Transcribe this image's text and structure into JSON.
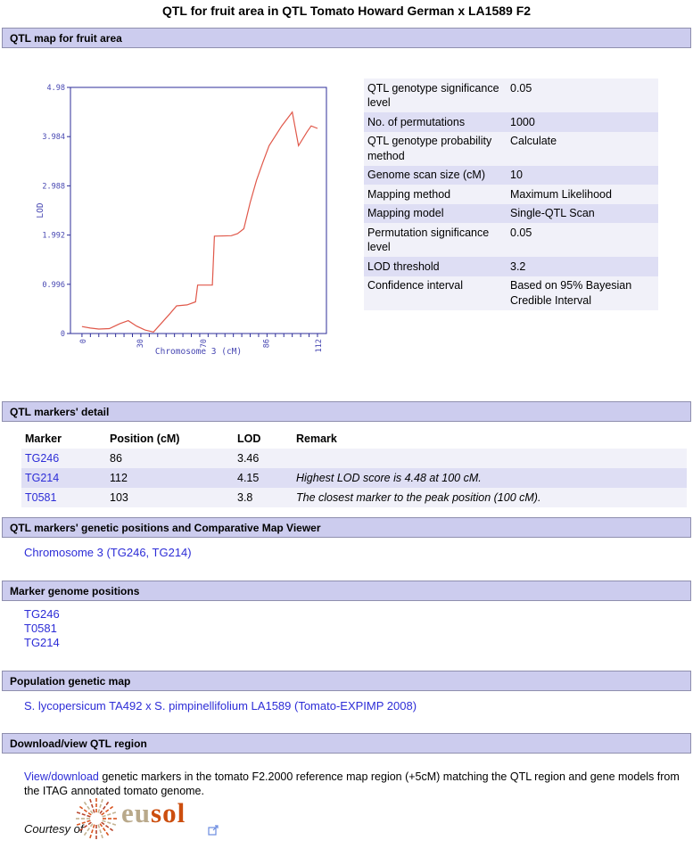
{
  "page": {
    "title": "QTL for fruit area in QTL Tomato Howard German x LA1589 F2"
  },
  "sections": {
    "map": {
      "title": "QTL map for fruit area"
    },
    "markers_detail": {
      "title": "QTL markers' detail"
    },
    "genetic_positions": {
      "title": "QTL markers' genetic positions and Comparative Map Viewer",
      "link": "Chromosome 3 (TG246, TG214)"
    },
    "genome_positions": {
      "title": "Marker genome positions",
      "links": [
        "TG246",
        "T0581",
        "TG214"
      ]
    },
    "population_map": {
      "title": "Population genetic map",
      "link": "S. lycopersicum TA492 x S. pimpinellifolium LA1589 (Tomato-EXPIMP 2008)"
    },
    "download": {
      "title": "Download/view QTL region",
      "link_text": "View/download",
      "text_after": " genetic markers in the tomato F2.2000 reference map region (+5cM) matching the QTL region and gene models from the ITAG annotated tomato genome."
    }
  },
  "parameters": {
    "rows": [
      {
        "label": "QTL genotype significance level",
        "value": "0.05"
      },
      {
        "label": "No. of permutations",
        "value": "1000"
      },
      {
        "label": "QTL genotype probability method",
        "value": "Calculate"
      },
      {
        "label": "Genome scan size (cM)",
        "value": "10"
      },
      {
        "label": "Mapping method",
        "value": "Maximum Likelihood"
      },
      {
        "label": "Mapping model",
        "value": "Single-QTL Scan"
      },
      {
        "label": "Permutation significance level",
        "value": "0.05"
      },
      {
        "label": "LOD threshold",
        "value": "3.2"
      },
      {
        "label": "Confidence interval",
        "value": "Based on 95% Bayesian Credible Interval"
      }
    ]
  },
  "markers_table": {
    "headers": [
      "Marker",
      "Position (cM)",
      "LOD",
      "Remark"
    ],
    "rows": [
      {
        "marker": "TG246",
        "position": "86",
        "lod": "3.46",
        "remark": ""
      },
      {
        "marker": "TG214",
        "position": "112",
        "lod": "4.15",
        "remark": "Highest LOD score is 4.48 at 100 cM."
      },
      {
        "marker": "T0581",
        "position": "103",
        "lod": "3.8",
        "remark": "The closest marker to the peak position (100 cM)."
      }
    ]
  },
  "chart_data": {
    "type": "line",
    "title": "",
    "xlabel": "Chromosome 3 (cM)",
    "ylabel": "LOD",
    "xlim": [
      0,
      112
    ],
    "ylim": [
      0,
      4.98
    ],
    "yticks": [
      0,
      0.996,
      1.992,
      2.988,
      3.984,
      4.98
    ],
    "xticks": [
      {
        "label": "0",
        "pos": 0.045
      },
      {
        "label": "30",
        "pos": 0.268
      },
      {
        "label": "70",
        "pos": 0.515
      },
      {
        "label": "86",
        "pos": 0.762
      },
      {
        "label": "112",
        "pos": 0.965
      }
    ],
    "series": [
      {
        "name": "LOD score",
        "points": [
          [
            0,
            0.14
          ],
          [
            4,
            0.11
          ],
          [
            8,
            0.09
          ],
          [
            13,
            0.1
          ],
          [
            18,
            0.2
          ],
          [
            22,
            0.26
          ],
          [
            26,
            0.15
          ],
          [
            30,
            0.07
          ],
          [
            34,
            0.03
          ],
          [
            38,
            0.22
          ],
          [
            42,
            0.41
          ],
          [
            45,
            0.56
          ],
          [
            50,
            0.58
          ],
          [
            54,
            0.64
          ],
          [
            55,
            0.98
          ],
          [
            62,
            0.98
          ],
          [
            63,
            1.97
          ],
          [
            71,
            1.98
          ],
          [
            74,
            2.02
          ],
          [
            77,
            2.12
          ],
          [
            80,
            2.65
          ],
          [
            83,
            3.1
          ],
          [
            86,
            3.46
          ],
          [
            89,
            3.8
          ],
          [
            92,
            4.0
          ],
          [
            95,
            4.2
          ],
          [
            100,
            4.48
          ],
          [
            103,
            3.8
          ],
          [
            107,
            4.08
          ],
          [
            109,
            4.2
          ],
          [
            112,
            4.15
          ]
        ]
      }
    ],
    "peak": {
      "lod": 4.48,
      "position_cM": 100
    },
    "lod_threshold": 3.2,
    "legend": "off",
    "grid": "off",
    "colors": {
      "axis": "#2e2e9a",
      "line": "#e0584a",
      "text": "#4747b2"
    }
  },
  "footer": {
    "courtesy_label": "Courtesy of",
    "logo_text_eu": "eu",
    "logo_text_sol": "sol",
    "external_link_icon": "external-link-icon",
    "burst_colors": [
      "#d9541e",
      "#c3b391",
      "#b8452c"
    ]
  },
  "colors": {
    "section_bar_bg": "#ccccee",
    "section_bar_border": "#8f8fae",
    "row_light": "#f1f1f9",
    "row_dark": "#dedef4",
    "link": "#2d2dd7"
  }
}
